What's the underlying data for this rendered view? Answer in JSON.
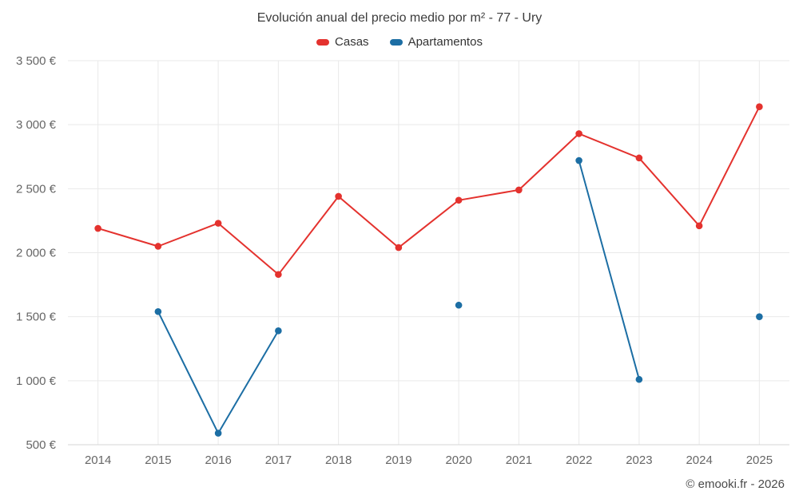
{
  "title": "Evolución anual del precio medio por m² - 77 - Ury",
  "legend": [
    {
      "label": "Casas",
      "color": "#e4322e"
    },
    {
      "label": "Apartamentos",
      "color": "#1c6ea4"
    }
  ],
  "footer": "© emooki.fr - 2026",
  "colors": {
    "grid": "#e9e9e9",
    "axis_line": "#d6d6d6",
    "axis_text": "#666666"
  },
  "chart_data": {
    "type": "line",
    "title": "Evolución anual del precio medio por m² - 77 - Ury",
    "x": [
      2014,
      2015,
      2016,
      2017,
      2018,
      2019,
      2020,
      2021,
      2022,
      2023,
      2024,
      2025
    ],
    "series": [
      {
        "name": "Casas",
        "color": "#e4322e",
        "values": [
          2190,
          2050,
          2230,
          1830,
          2440,
          2040,
          2410,
          2490,
          2930,
          2740,
          2210,
          3140
        ]
      },
      {
        "name": "Apartamentos",
        "color": "#1c6ea4",
        "values": [
          null,
          1540,
          590,
          1390,
          null,
          null,
          1590,
          null,
          2720,
          1010,
          null,
          1500
        ]
      }
    ],
    "xlabel": "",
    "ylabel": "",
    "ylim": [
      500,
      3500
    ],
    "ytick_step": 500,
    "ytick_suffix": " €",
    "grid": true,
    "legend_position": "top"
  }
}
